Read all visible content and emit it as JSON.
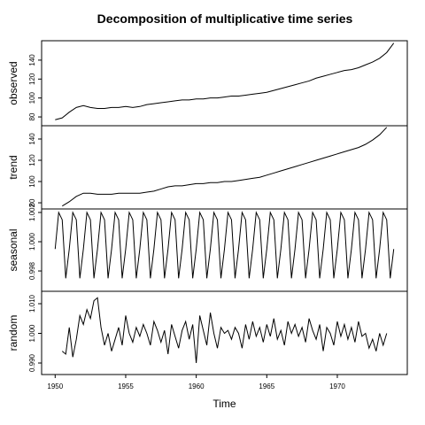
{
  "chart_data": [
    {
      "type": "line",
      "title": "Decomposition of multiplicative time series",
      "ylabel": "observed",
      "color": "#000000",
      "xlim": [
        1949.04,
        1974.96
      ],
      "ylim": [
        70.7,
        160.5
      ],
      "yticks": [
        80,
        100,
        120,
        140
      ],
      "x": [
        1950,
        1950.5,
        1951,
        1951.5,
        1952,
        1952.5,
        1953,
        1953.5,
        1954,
        1954.5,
        1955,
        1955.5,
        1956,
        1956.5,
        1957,
        1957.5,
        1958,
        1958.5,
        1959,
        1959.5,
        1960,
        1960.5,
        1961,
        1961.5,
        1962,
        1962.5,
        1963,
        1963.5,
        1964,
        1964.5,
        1965,
        1965.5,
        1966,
        1966.5,
        1967,
        1967.5,
        1968,
        1968.5,
        1969,
        1969.5,
        1970,
        1970.5,
        1971,
        1971.5,
        1972,
        1972.5,
        1973,
        1973.5,
        1974
      ],
      "values": [
        77,
        79,
        85,
        90,
        92,
        90,
        89,
        89,
        90,
        90,
        91,
        90,
        91,
        93,
        94,
        95,
        96,
        97,
        98,
        98,
        99,
        99,
        100,
        100,
        101,
        102,
        102,
        103,
        104,
        105,
        106,
        108,
        110,
        112,
        114,
        116,
        118,
        121,
        123,
        125,
        127,
        129,
        130,
        132,
        135,
        138,
        142,
        148,
        158
      ]
    },
    {
      "type": "line",
      "ylabel": "trend",
      "color": "#000000",
      "xlim": [
        1949.04,
        1974.96
      ],
      "ylim": [
        74.2,
        152.5
      ],
      "yticks": [
        80,
        100,
        120,
        140
      ],
      "x": [
        1950.5,
        1951,
        1951.5,
        1952,
        1952.5,
        1953,
        1953.5,
        1954,
        1954.5,
        1955,
        1955.5,
        1956,
        1956.5,
        1957,
        1957.5,
        1958,
        1958.5,
        1959,
        1959.5,
        1960,
        1960.5,
        1961,
        1961.5,
        1962,
        1962.5,
        1963,
        1963.5,
        1964,
        1964.5,
        1965,
        1965.5,
        1966,
        1966.5,
        1967,
        1967.5,
        1968,
        1968.5,
        1969,
        1969.5,
        1970,
        1970.5,
        1971,
        1971.5,
        1972,
        1972.5,
        1973,
        1973.5
      ],
      "values": [
        77,
        81,
        86,
        89,
        89,
        88,
        88,
        88,
        89,
        89,
        89,
        89,
        90,
        91,
        93,
        95,
        96,
        96,
        97,
        98,
        98,
        99,
        99,
        100,
        100,
        101,
        102,
        103,
        104,
        106,
        108,
        110,
        112,
        114,
        116,
        118,
        120,
        122,
        124,
        126,
        128,
        130,
        132,
        135,
        139,
        144,
        151
      ]
    },
    {
      "type": "line",
      "ylabel": "seasonal",
      "color": "#000000",
      "xlim": [
        1949.04,
        1974.96
      ],
      "ylim": [
        0.99661,
        1.00224
      ],
      "yticks": [
        0.998,
        {
          "value": 1,
          "label": "1.000"
        },
        1.002
      ],
      "x": [
        1950,
        1950.25,
        1950.5,
        1950.75,
        1951,
        1951.25,
        1951.5,
        1951.75,
        1952,
        1952.25,
        1952.5,
        1952.75,
        1953,
        1953.25,
        1953.5,
        1953.75,
        1954,
        1954.25,
        1954.5,
        1954.75,
        1955,
        1955.25,
        1955.5,
        1955.75,
        1956,
        1956.25,
        1956.5,
        1956.75,
        1957,
        1957.25,
        1957.5,
        1957.75,
        1958,
        1958.25,
        1958.5,
        1958.75,
        1959,
        1959.25,
        1959.5,
        1959.75,
        1960,
        1960.25,
        1960.5,
        1960.75,
        1961,
        1961.25,
        1961.5,
        1961.75,
        1962,
        1962.25,
        1962.5,
        1962.75,
        1963,
        1963.25,
        1963.5,
        1963.75,
        1964,
        1964.25,
        1964.5,
        1964.75,
        1965,
        1965.25,
        1965.5,
        1965.75,
        1966,
        1966.25,
        1966.5,
        1966.75,
        1967,
        1967.25,
        1967.5,
        1967.75,
        1968,
        1968.25,
        1968.5,
        1968.75,
        1969,
        1969.25,
        1969.5,
        1969.75,
        1970,
        1970.25,
        1970.5,
        1970.75,
        1971,
        1971.25,
        1971.5,
        1971.75,
        1972,
        1972.25,
        1972.5,
        1972.75,
        1973,
        1973.25,
        1973.5,
        1973.75,
        1974
      ],
      "values": [
        0.9995,
        1.002,
        1.0015,
        0.9975,
        0.9995,
        1.002,
        1.0015,
        0.9975,
        0.9995,
        1.002,
        1.0015,
        0.9975,
        0.9995,
        1.002,
        1.0015,
        0.9975,
        0.9995,
        1.002,
        1.0015,
        0.9975,
        0.9995,
        1.002,
        1.0015,
        0.9975,
        0.9995,
        1.002,
        1.0015,
        0.9975,
        0.9995,
        1.002,
        1.0015,
        0.9975,
        0.9995,
        1.002,
        1.0015,
        0.9975,
        0.9995,
        1.002,
        1.0015,
        0.9975,
        0.9995,
        1.002,
        1.0015,
        0.9975,
        0.9995,
        1.002,
        1.0015,
        0.9975,
        0.9995,
        1.002,
        1.0015,
        0.9975,
        0.9995,
        1.002,
        1.0015,
        0.9975,
        0.9995,
        1.002,
        1.0015,
        0.9975,
        0.9995,
        1.002,
        1.0015,
        0.9975,
        0.9995,
        1.002,
        1.0015,
        0.9975,
        0.9995,
        1.002,
        1.0015,
        0.9975,
        0.9995,
        1.002,
        1.0015,
        0.9975,
        0.9995,
        1.002,
        1.0015,
        0.9975,
        0.9995,
        1.002,
        1.0015,
        0.9975,
        0.9995,
        1.002,
        1.0015,
        0.9975,
        0.9995,
        1.002,
        1.0015,
        0.9975,
        0.9995,
        1.002,
        1.0015,
        0.9975,
        0.9995
      ]
    },
    {
      "type": "line",
      "ylabel": "random",
      "xlabel": "Time",
      "color": "#000000",
      "xlim": [
        1949.04,
        1974.96
      ],
      "ylim": [
        0.98612,
        1.01418
      ],
      "yticks": [
        {
          "value": 0.99,
          "label": "0.990"
        },
        {
          "value": 1,
          "label": "1.000"
        },
        {
          "value": 1.01,
          "label": "1.010"
        }
      ],
      "xticks": [
        1950,
        1955,
        1960,
        1965,
        1970
      ],
      "x": [
        1950.5,
        1950.75,
        1951,
        1951.25,
        1951.5,
        1951.75,
        1952,
        1952.25,
        1952.5,
        1952.75,
        1953,
        1953.25,
        1953.5,
        1953.75,
        1954,
        1954.25,
        1954.5,
        1954.75,
        1955,
        1955.25,
        1955.5,
        1955.75,
        1956,
        1956.25,
        1956.5,
        1956.75,
        1957,
        1957.25,
        1957.5,
        1957.75,
        1958,
        1958.25,
        1958.5,
        1958.75,
        1959,
        1959.25,
        1959.5,
        1959.75,
        1960,
        1960.25,
        1960.5,
        1960.75,
        1961,
        1961.25,
        1961.5,
        1961.75,
        1962,
        1962.25,
        1962.5,
        1962.75,
        1963,
        1963.25,
        1963.5,
        1963.75,
        1964,
        1964.25,
        1964.5,
        1964.75,
        1965,
        1965.25,
        1965.5,
        1965.75,
        1966,
        1966.25,
        1966.5,
        1966.75,
        1967,
        1967.25,
        1967.5,
        1967.75,
        1968,
        1968.25,
        1968.5,
        1968.75,
        1969,
        1969.25,
        1969.5,
        1969.75,
        1970,
        1970.25,
        1970.5,
        1970.75,
        1971,
        1971.25,
        1971.5,
        1971.75,
        1972,
        1972.25,
        1972.5,
        1972.75,
        1973,
        1973.25,
        1973.5
      ],
      "values": [
        0.994,
        0.993,
        1.002,
        0.992,
        0.998,
        1.006,
        1.003,
        1.008,
        1.005,
        1.011,
        1.012,
        1.002,
        0.996,
        1.0,
        0.994,
        0.998,
        1.002,
        0.996,
        1.006,
        1.0,
        0.997,
        1.002,
        0.999,
        1.003,
        1.0,
        0.996,
        1.004,
        1.001,
        0.997,
        1.001,
        0.993,
        1.003,
        0.999,
        0.995,
        1.001,
        1.004,
        0.998,
        1.003,
        0.99,
        1.006,
        1.001,
        0.996,
        1.007,
        1.0,
        0.995,
        1.002,
        1.0,
        1.001,
        0.998,
        1.002,
        1.0,
        0.995,
        1.003,
        0.998,
        1.004,
        0.999,
        1.002,
        0.997,
        1.003,
        0.999,
        1.005,
        0.998,
        1.001,
        0.996,
        1.004,
        1.0,
        1.003,
        0.999,
        1.002,
        0.997,
        1.005,
        1.001,
        0.998,
        1.003,
        0.994,
        1.002,
        1.0,
        0.996,
        1.004,
        0.999,
        1.003,
        0.998,
        1.002,
        0.997,
        1.004,
        0.999,
        1.0,
        0.995,
        0.998,
        0.994,
        1.0,
        0.996,
        1.0
      ]
    }
  ]
}
